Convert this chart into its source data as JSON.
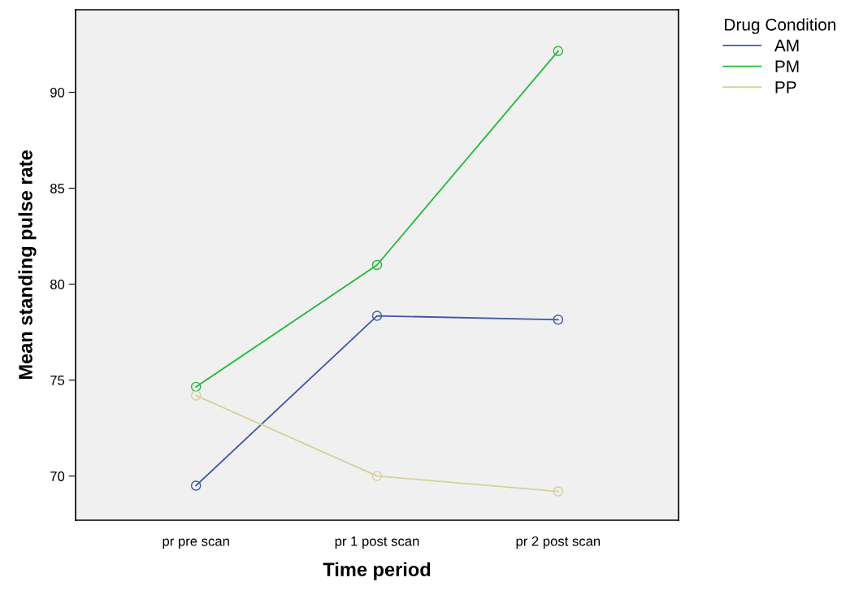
{
  "chart_data": {
    "type": "line",
    "xlabel": "Time period",
    "ylabel": "Mean standing pulse rate",
    "legend_title": "Drug Condition",
    "legend": "top right",
    "marker": "circle",
    "grid": false,
    "categories": [
      "pr pre scan",
      "pr 1 post scan",
      "pr 2 post scan"
    ],
    "ylim": [
      67.7,
      94.3
    ],
    "yticks": [
      70,
      75,
      80,
      85,
      90
    ],
    "series": [
      {
        "name": "AM",
        "color": "#3e57ab",
        "values": [
          69.5,
          78.35,
          78.15
        ]
      },
      {
        "name": "PM",
        "color": "#21bb35",
        "values": [
          74.65,
          81.0,
          92.15
        ]
      },
      {
        "name": "PP",
        "color": "#d5d09a",
        "values": [
          74.2,
          70.0,
          69.2
        ]
      }
    ]
  }
}
